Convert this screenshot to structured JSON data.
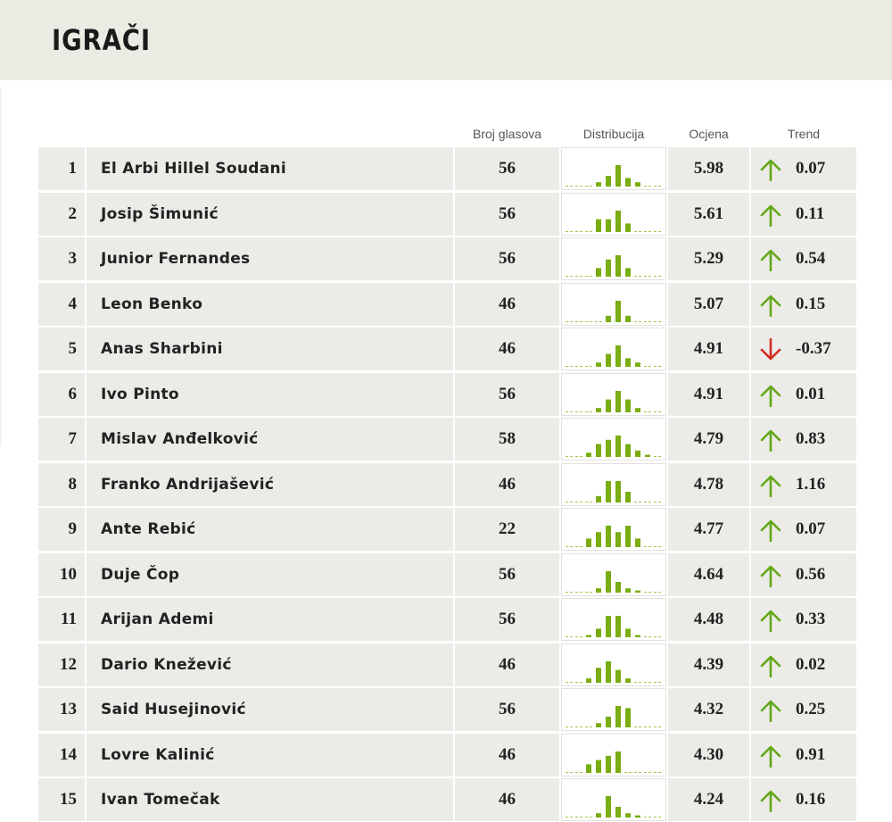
{
  "page": {
    "title": "IGRAČI"
  },
  "columns": {
    "votes": "Broj glasova",
    "distribution": "Distribucija",
    "score": "Ocjena",
    "trend": "Trend"
  },
  "colors": {
    "up": "#63a819",
    "down": "#d42a24",
    "bar": "#79ad12",
    "dash": "#9fc94a"
  },
  "players": [
    {
      "rank": "1",
      "name": "El Arbi Hillel Soudani",
      "votes": "56",
      "score": "5.98",
      "trend": "0.07",
      "dir": "up",
      "dist": [
        0,
        0,
        0,
        0.2,
        0.5,
        1.0,
        0.4,
        0.2,
        0,
        0
      ]
    },
    {
      "rank": "2",
      "name": "Josip Šimunić",
      "votes": "56",
      "score": "5.61",
      "trend": "0.11",
      "dir": "up",
      "dist": [
        0,
        0,
        0,
        0.6,
        0.6,
        1.0,
        0.4,
        0,
        0,
        0
      ]
    },
    {
      "rank": "3",
      "name": "Junior Fernandes",
      "votes": "56",
      "score": "5.29",
      "trend": "0.54",
      "dir": "up",
      "dist": [
        0,
        0,
        0,
        0.4,
        0.8,
        1.0,
        0.4,
        0,
        0,
        0
      ]
    },
    {
      "rank": "4",
      "name": "Leon Benko",
      "votes": "46",
      "score": "5.07",
      "trend": "0.15",
      "dir": "up",
      "dist": [
        0,
        0,
        0,
        0,
        0.3,
        1.0,
        0.3,
        0,
        0,
        0
      ]
    },
    {
      "rank": "5",
      "name": "Anas Sharbini",
      "votes": "46",
      "score": "4.91",
      "trend": "-0.37",
      "dir": "down",
      "dist": [
        0,
        0,
        0,
        0.2,
        0.6,
        1.0,
        0.4,
        0.2,
        0,
        0
      ]
    },
    {
      "rank": "6",
      "name": "Ivo Pinto",
      "votes": "56",
      "score": "4.91",
      "trend": "0.01",
      "dir": "up",
      "dist": [
        0,
        0,
        0,
        0.2,
        0.6,
        1.0,
        0.6,
        0.2,
        0,
        0
      ]
    },
    {
      "rank": "7",
      "name": "Mislav Anđelković",
      "votes": "58",
      "score": "4.79",
      "trend": "0.83",
      "dir": "up",
      "dist": [
        0,
        0,
        0.2,
        0.6,
        0.8,
        1.0,
        0.6,
        0.3,
        0.1,
        0
      ]
    },
    {
      "rank": "8",
      "name": "Franko Andrijašević",
      "votes": "46",
      "score": "4.78",
      "trend": "1.16",
      "dir": "up",
      "dist": [
        0,
        0,
        0,
        0.3,
        1.0,
        1.0,
        0.5,
        0,
        0,
        0
      ]
    },
    {
      "rank": "9",
      "name": "Ante Rebić",
      "votes": "22",
      "score": "4.77",
      "trend": "0.07",
      "dir": "up",
      "dist": [
        0,
        0,
        0.4,
        0.7,
        1.0,
        0.7,
        1.0,
        0.4,
        0,
        0
      ]
    },
    {
      "rank": "10",
      "name": "Duje Čop",
      "votes": "56",
      "score": "4.64",
      "trend": "0.56",
      "dir": "up",
      "dist": [
        0,
        0,
        0,
        0.2,
        1.0,
        0.5,
        0.2,
        0.1,
        0,
        0
      ]
    },
    {
      "rank": "11",
      "name": "Arijan Ademi",
      "votes": "56",
      "score": "4.48",
      "trend": "0.33",
      "dir": "up",
      "dist": [
        0,
        0,
        0.1,
        0.4,
        1.0,
        1.0,
        0.4,
        0.1,
        0,
        0
      ]
    },
    {
      "rank": "12",
      "name": "Dario Knežević",
      "votes": "46",
      "score": "4.39",
      "trend": "0.02",
      "dir": "up",
      "dist": [
        0,
        0,
        0.2,
        0.7,
        1.0,
        0.6,
        0.2,
        0,
        0,
        0
      ]
    },
    {
      "rank": "13",
      "name": "Said Husejinović",
      "votes": "56",
      "score": "4.32",
      "trend": "0.25",
      "dir": "up",
      "dist": [
        0,
        0,
        0,
        0.2,
        0.5,
        1.0,
        0.9,
        0,
        0,
        0
      ]
    },
    {
      "rank": "14",
      "name": "Lovre Kalinić",
      "votes": "46",
      "score": "4.30",
      "trend": "0.91",
      "dir": "up",
      "dist": [
        0,
        0,
        0.4,
        0.6,
        0.8,
        1.0,
        0,
        0,
        0,
        0
      ]
    },
    {
      "rank": "15",
      "name": "Ivan Tomečak",
      "votes": "46",
      "score": "4.24",
      "trend": "0.16",
      "dir": "up",
      "dist": [
        0,
        0,
        0,
        0.2,
        1.0,
        0.5,
        0.2,
        0.1,
        0,
        0
      ]
    }
  ]
}
